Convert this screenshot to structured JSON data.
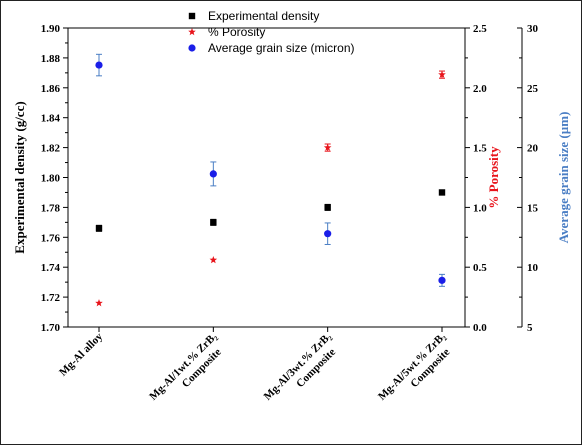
{
  "chart_data": {
    "type": "scatter",
    "categories": [
      {
        "line1": "Mg-Al alloy",
        "line2": ""
      },
      {
        "line1": "Mg-Al/1wt.% ZrB₂",
        "line2": "Composite"
      },
      {
        "line1": "Mg-Al/3wt.% ZrB₂",
        "line2": "Composite"
      },
      {
        "line1": "Mg-Al/5wt.% ZrB₂",
        "line2": "Composite"
      }
    ],
    "axes": {
      "left": {
        "label": "Experimental density (g/cc)",
        "ylim": [
          1.7,
          1.9
        ],
        "ticks": [
          1.7,
          1.72,
          1.74,
          1.76,
          1.78,
          1.8,
          1.82,
          1.84,
          1.86,
          1.88,
          1.9
        ],
        "decimals": 2,
        "color": "#000000"
      },
      "right1": {
        "label": "% Porosity",
        "ylim": [
          0.0,
          2.5
        ],
        "ticks": [
          0.0,
          0.5,
          1.0,
          1.5,
          2.0,
          2.5
        ],
        "decimals": 1,
        "color": "#e8141b"
      },
      "right2": {
        "label": "Average grain size (µm)",
        "ylim": [
          5,
          30
        ],
        "ticks": [
          5,
          10,
          15,
          20,
          25,
          30
        ],
        "decimals": 0,
        "color": "#4a7ec4"
      }
    },
    "series": [
      {
        "name": "Experimental density",
        "axis": "left",
        "marker": "square",
        "color": "#000000",
        "values": [
          1.766,
          1.77,
          1.78,
          1.79
        ],
        "errors": [
          0.002,
          0.002,
          0.002,
          0.0015
        ]
      },
      {
        "name": "% Porosity",
        "axis": "right1",
        "marker": "star",
        "color": "#e8141b",
        "values": [
          0.2,
          0.56,
          1.5,
          2.11
        ],
        "errors": [
          0,
          0,
          0.03,
          0.03
        ]
      },
      {
        "name": "Average grain size (micron)",
        "axis": "right2",
        "marker": "circle",
        "color": "#1a1ee8",
        "values": [
          26.9,
          17.8,
          12.8,
          8.9
        ],
        "errors": [
          0.9,
          1.0,
          0.9,
          0.5
        ]
      }
    ],
    "legend": {
      "position": "top-center"
    }
  }
}
